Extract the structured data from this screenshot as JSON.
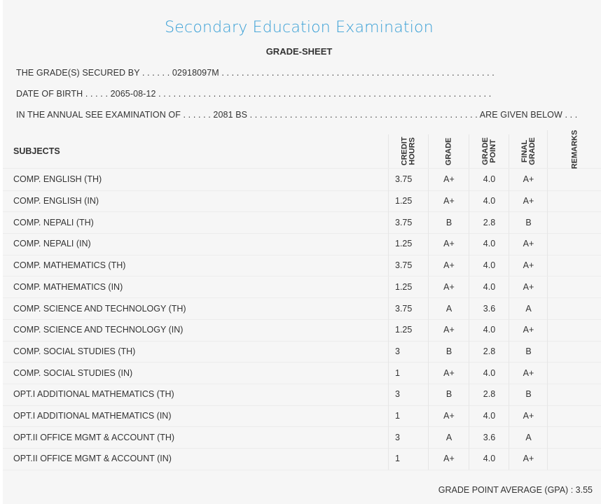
{
  "title": "Secondary Education Examination",
  "subtitle": "GRADE-SHEET",
  "info": {
    "secured_by_label": "THE GRADE(S) SECURED BY . . . . . .",
    "secured_by_value": "02918097M",
    "secured_by_dots": ". . . . . . . . . . . . . . . . . . . . . . . . . . . . . . . . . . . . . . . . . . . . . . . . . . . . . . .",
    "dob_label": "DATE OF BIRTH . . . . .",
    "dob_value": "2065-08-12",
    "dob_dots": ". . . . . . . . . . . . . . . . . . . . . . . . . . . . . . . . . . . . . . . . . . . . . . . . . . . . . . . . . . . . . . . . . . .",
    "exam_label": "IN THE ANNUAL SEE EXAMINATION OF . . . . . .",
    "exam_value": "2081 BS",
    "exam_dots": ". . . . . . . . . . . . . . . . . . . . . . . . . . . . . . . . . . . . . . . . . . . . . .",
    "exam_suffix": "ARE GIVEN BELOW . . ."
  },
  "table": {
    "headers": {
      "subjects": "SUBJECTS",
      "credit_hours": "CREDIT\nHOURS",
      "grade": "GRADE",
      "grade_point": "GRADE\nPOINT",
      "final_grade": "FINAL\nGRADE",
      "remarks": "REMARKS"
    },
    "rows": [
      {
        "subject": "COMP. ENGLISH (TH)",
        "credit": "3.75",
        "grade": "A+",
        "gp": "4.0",
        "final": "A+",
        "remarks": ""
      },
      {
        "subject": "COMP. ENGLISH (IN)",
        "credit": "1.25",
        "grade": "A+",
        "gp": "4.0",
        "final": "A+",
        "remarks": ""
      },
      {
        "subject": "COMP. NEPALI (TH)",
        "credit": "3.75",
        "grade": "B",
        "gp": "2.8",
        "final": "B",
        "remarks": ""
      },
      {
        "subject": "COMP. NEPALI (IN)",
        "credit": "1.25",
        "grade": "A+",
        "gp": "4.0",
        "final": "A+",
        "remarks": ""
      },
      {
        "subject": "COMP. MATHEMATICS (TH)",
        "credit": "3.75",
        "grade": "A+",
        "gp": "4.0",
        "final": "A+",
        "remarks": ""
      },
      {
        "subject": "COMP. MATHEMATICS (IN)",
        "credit": "1.25",
        "grade": "A+",
        "gp": "4.0",
        "final": "A+",
        "remarks": ""
      },
      {
        "subject": "COMP. SCIENCE AND TECHNOLOGY (TH)",
        "credit": "3.75",
        "grade": "A",
        "gp": "3.6",
        "final": "A",
        "remarks": ""
      },
      {
        "subject": "COMP. SCIENCE AND TECHNOLOGY (IN)",
        "credit": "1.25",
        "grade": "A+",
        "gp": "4.0",
        "final": "A+",
        "remarks": ""
      },
      {
        "subject": "COMP. SOCIAL STUDIES (TH)",
        "credit": "3",
        "grade": "B",
        "gp": "2.8",
        "final": "B",
        "remarks": ""
      },
      {
        "subject": "COMP. SOCIAL STUDIES (IN)",
        "credit": "1",
        "grade": "A+",
        "gp": "4.0",
        "final": "A+",
        "remarks": ""
      },
      {
        "subject": "OPT.I ADDITIONAL MATHEMATICS (TH)",
        "credit": "3",
        "grade": "B",
        "gp": "2.8",
        "final": "B",
        "remarks": ""
      },
      {
        "subject": "OPT.I ADDITIONAL MATHEMATICS (IN)",
        "credit": "1",
        "grade": "A+",
        "gp": "4.0",
        "final": "A+",
        "remarks": ""
      },
      {
        "subject": "OPT.II OFFICE MGMT & ACCOUNT (TH)",
        "credit": "3",
        "grade": "A",
        "gp": "3.6",
        "final": "A",
        "remarks": ""
      },
      {
        "subject": "OPT.II OFFICE MGMT & ACCOUNT (IN)",
        "credit": "1",
        "grade": "A+",
        "gp": "4.0",
        "final": "A+",
        "remarks": ""
      }
    ]
  },
  "gpa": {
    "label": "GRADE POINT AVERAGE (GPA) :",
    "value": "3.55"
  },
  "colors": {
    "title": "#3aa0d6",
    "background": "#f6f6f6",
    "text": "#333333"
  }
}
